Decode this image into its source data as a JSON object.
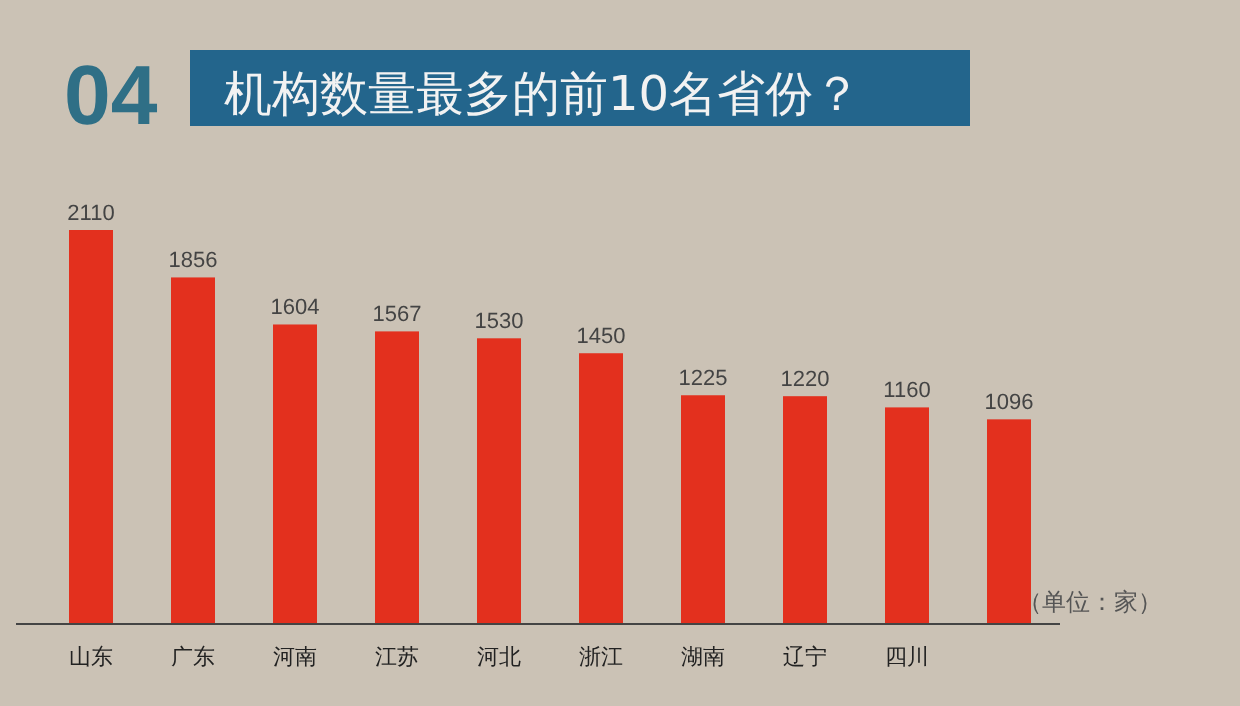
{
  "chart_data": {
    "type": "bar",
    "title": "机构数量最多的前10名省份？",
    "categories": [
      "山东",
      "广东",
      "河南",
      "江苏",
      "河北",
      "浙江",
      "湖南",
      "辽宁",
      "四川",
      null
    ],
    "values": [
      2110,
      1856,
      1604,
      1567,
      1530,
      1450,
      1225,
      1220,
      1160,
      1096
    ],
    "color": "#e3301e",
    "data_labels": true,
    "annotations": [
      "04",
      "（单位：家）"
    ]
  }
}
